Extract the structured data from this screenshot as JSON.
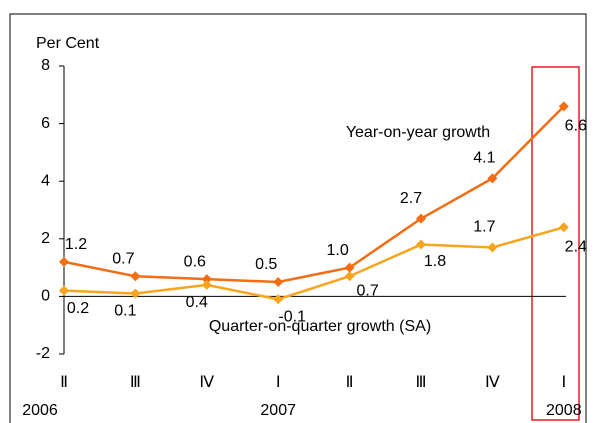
{
  "chart_data": {
    "type": "line",
    "ylabel": "Per Cent",
    "categories": [
      "Ⅱ",
      "Ⅲ",
      "Ⅳ",
      "Ⅰ",
      "Ⅱ",
      "Ⅲ",
      "Ⅳ",
      "Ⅰ"
    ],
    "years": [
      "2006",
      "2007",
      "2008"
    ],
    "series": [
      {
        "name": "Year-on-year growth",
        "color": "#f26d13",
        "values": [
          1.2,
          0.7,
          0.6,
          0.5,
          1.0,
          2.7,
          4.1,
          6.6
        ],
        "value_labels": [
          "1.2",
          "0.7",
          "0.6",
          "0.5",
          "1.0",
          "2.7",
          "4.1",
          "6.6"
        ]
      },
      {
        "name": "Quarter-on-quarter growth (SA)",
        "color": "#f7a51c",
        "values": [
          0.2,
          0.1,
          0.4,
          -0.1,
          0.7,
          1.8,
          1.7,
          2.4
        ],
        "value_labels": [
          "0.2",
          "0.1",
          "0.4",
          "-0.1",
          "0.7",
          "1.8",
          "1.7",
          "2.4"
        ]
      }
    ],
    "ylim": [
      -2,
      8
    ],
    "yticks": [
      -2,
      0,
      2,
      4,
      6,
      8
    ]
  }
}
